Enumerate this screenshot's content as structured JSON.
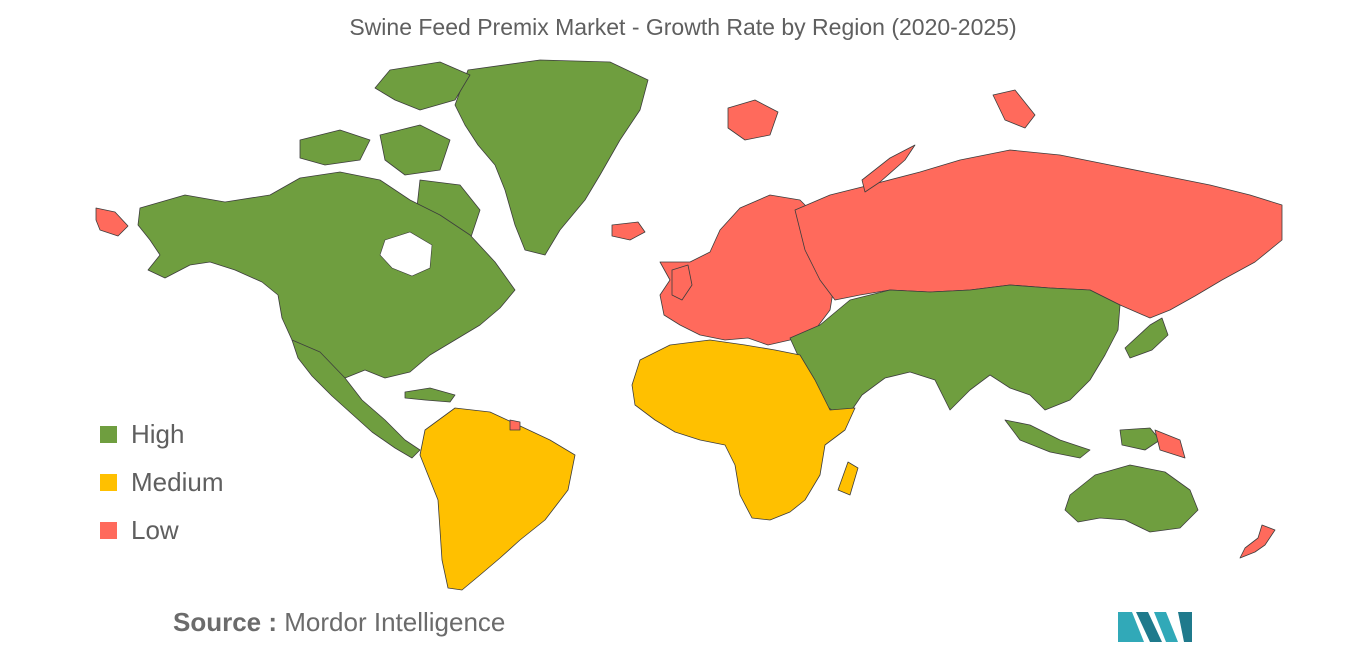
{
  "title": "Swine Feed Premix Market - Growth Rate by Region (2020-2025)",
  "legend": [
    {
      "label": "High",
      "color": "#6f9e3f"
    },
    {
      "label": "Medium",
      "color": "#ffc000"
    },
    {
      "label": "Low",
      "color": "#ff6a5c"
    }
  ],
  "source": {
    "label": "Source :",
    "name": "Mordor Intelligence"
  },
  "colors": {
    "high": "#6f9e3f",
    "medium": "#ffc000",
    "low": "#ff6a5c",
    "logo": "#31a9b8"
  },
  "regions": [
    {
      "name": "North America",
      "level": "High"
    },
    {
      "name": "Greenland",
      "level": "High"
    },
    {
      "name": "Central America & Caribbean",
      "level": "High"
    },
    {
      "name": "South America",
      "level": "Medium"
    },
    {
      "name": "Africa",
      "level": "Medium"
    },
    {
      "name": "Europe",
      "level": "Low"
    },
    {
      "name": "Russia",
      "level": "Low"
    },
    {
      "name": "Asia",
      "level": "High"
    },
    {
      "name": "Australia",
      "level": "High"
    },
    {
      "name": "New Zealand",
      "level": "Low"
    }
  ]
}
